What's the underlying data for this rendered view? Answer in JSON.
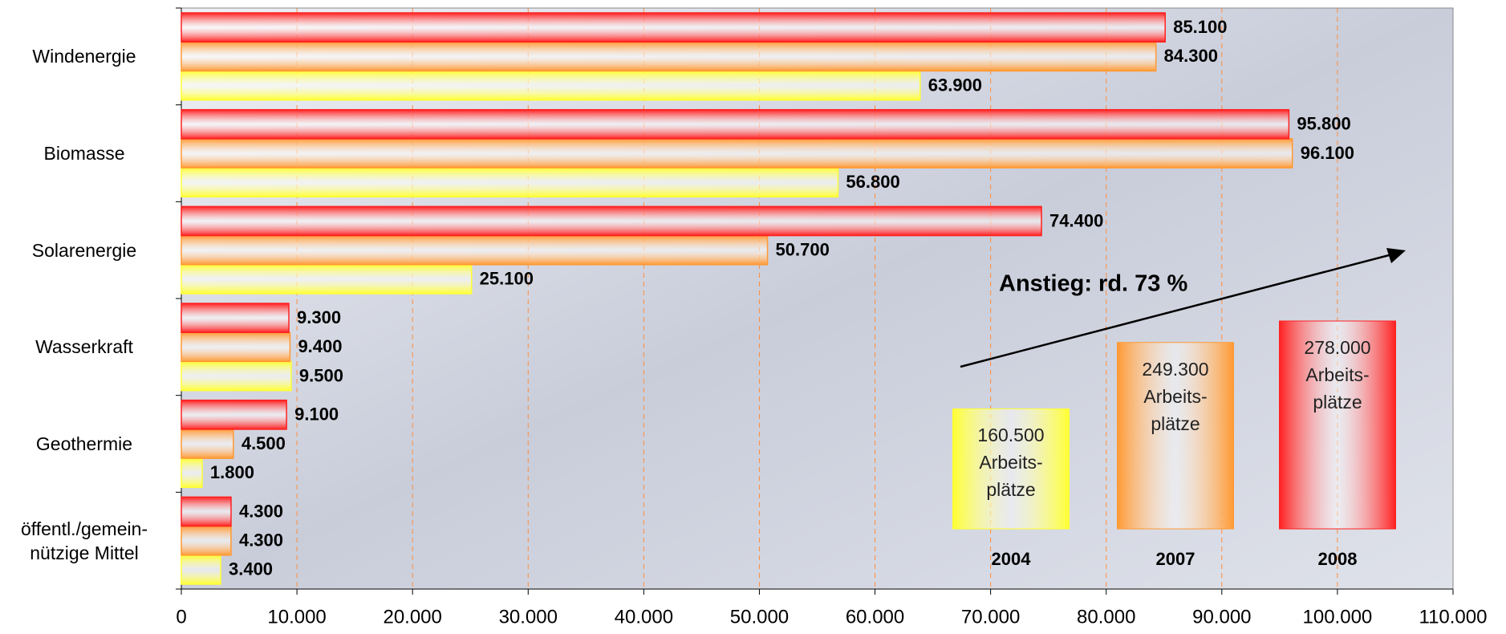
{
  "chart_data": {
    "type": "bar",
    "orientation": "horizontal",
    "categories": [
      "Windenergie",
      "Biomasse",
      "Solarenergie",
      "Wasserkraft",
      "Geothermie",
      "öffentl./gemein-\nnützige Mittel"
    ],
    "series": [
      {
        "name": "2004",
        "color": "#ffff33",
        "values": [
          63900,
          56800,
          25100,
          9500,
          1800,
          3400
        ],
        "value_labels": [
          "63.900",
          "56.800",
          "25.100",
          "9.500",
          "1.800",
          "3.400"
        ],
        "total": 160500,
        "total_label": "160.500",
        "unit_label": "Arbeits-\nplätze"
      },
      {
        "name": "2007",
        "color": "#ff9933",
        "values": [
          84300,
          96100,
          50700,
          9400,
          4500,
          4300
        ],
        "value_labels": [
          "84.300",
          "96.100",
          "50.700",
          "9.400",
          "4.500",
          "4.300"
        ],
        "total": 249300,
        "total_label": "249.300",
        "unit_label": "Arbeits-\nplätze"
      },
      {
        "name": "2008",
        "color": "#ff2020",
        "values": [
          85100,
          95800,
          74400,
          9300,
          9100,
          4300
        ],
        "value_labels": [
          "85.100",
          "95.800",
          "74.400",
          "9.300",
          "9.100",
          "4.300"
        ],
        "total": 278000,
        "total_label": "278.000",
        "unit_label": "Arbeits-\nplätze"
      }
    ],
    "xlim": [
      0,
      110000
    ],
    "xticks": [
      0,
      {
        "value": 10000,
        "label": "10.000"
      },
      {
        "value": 20000,
        "label": "20.000"
      },
      {
        "value": 30000,
        "label": "30.000"
      },
      {
        "value": 40000,
        "label": "40.000"
      },
      {
        "value": 50000,
        "label": "50.000"
      },
      {
        "value": 60000,
        "label": "60.000"
      },
      {
        "value": 70000,
        "label": "70.000"
      },
      {
        "value": 80000,
        "label": "80.000"
      },
      {
        "value": 90000,
        "label": "90.000"
      },
      {
        "value": 100000,
        "label": "100.000"
      },
      {
        "value": 110000,
        "label": "110.000"
      }
    ],
    "grid": true,
    "grid_color": "#ff8c3c",
    "annotation": "Anstieg: rd. 73 %"
  }
}
